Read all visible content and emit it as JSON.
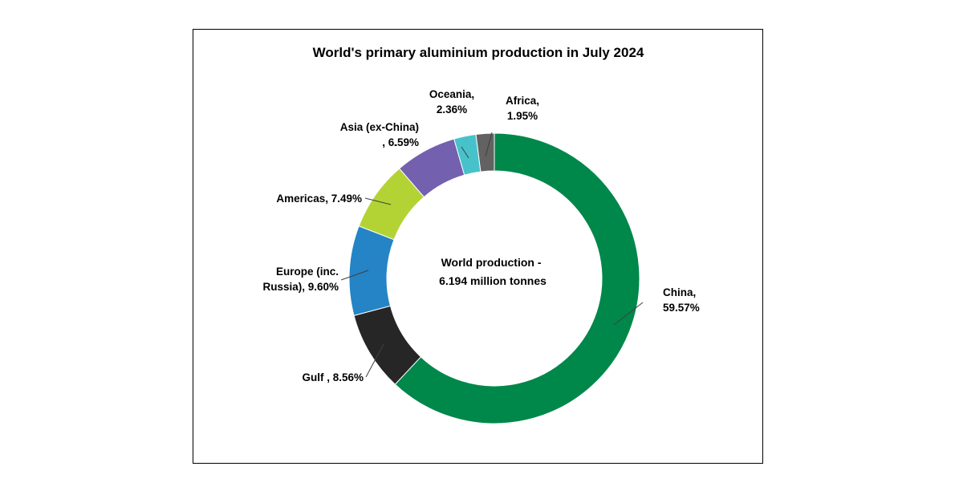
{
  "chart_data": {
    "type": "pie",
    "title": "World's primary aluminium production in July 2024",
    "center_text": [
      "World production -",
      "6.194 million tonnes"
    ],
    "slices": [
      {
        "label": "China, 59.57%",
        "lines": [
          "China,",
          "59.57%"
        ],
        "value": 59.57,
        "color": "#00874A"
      },
      {
        "label": "Gulf , 8.56%",
        "lines": [
          "Gulf , 8.56%"
        ],
        "value": 8.56,
        "color": "#262626"
      },
      {
        "label": "Europe (inc. Russia), 9.60%",
        "lines": [
          "Europe (inc.",
          "Russia), 9.60%"
        ],
        "value": 9.6,
        "color": "#2484C6"
      },
      {
        "label": "Americas, 7.49%",
        "lines": [
          "Americas, 7.49%"
        ],
        "value": 7.49,
        "color": "#B3D335"
      },
      {
        "label": "Asia (ex-China) , 6.59%",
        "lines": [
          "Asia (ex-China)",
          ", 6.59%"
        ],
        "value": 6.59,
        "color": "#7360AE"
      },
      {
        "label": "Oceania, 2.36%",
        "lines": [
          "Oceania,",
          "2.36%"
        ],
        "value": 2.36,
        "color": "#47C2CB"
      },
      {
        "label": "Africa, 1.95%",
        "lines": [
          "Africa,",
          "1.95%"
        ],
        "value": 1.95,
        "color": "#626262"
      }
    ]
  }
}
